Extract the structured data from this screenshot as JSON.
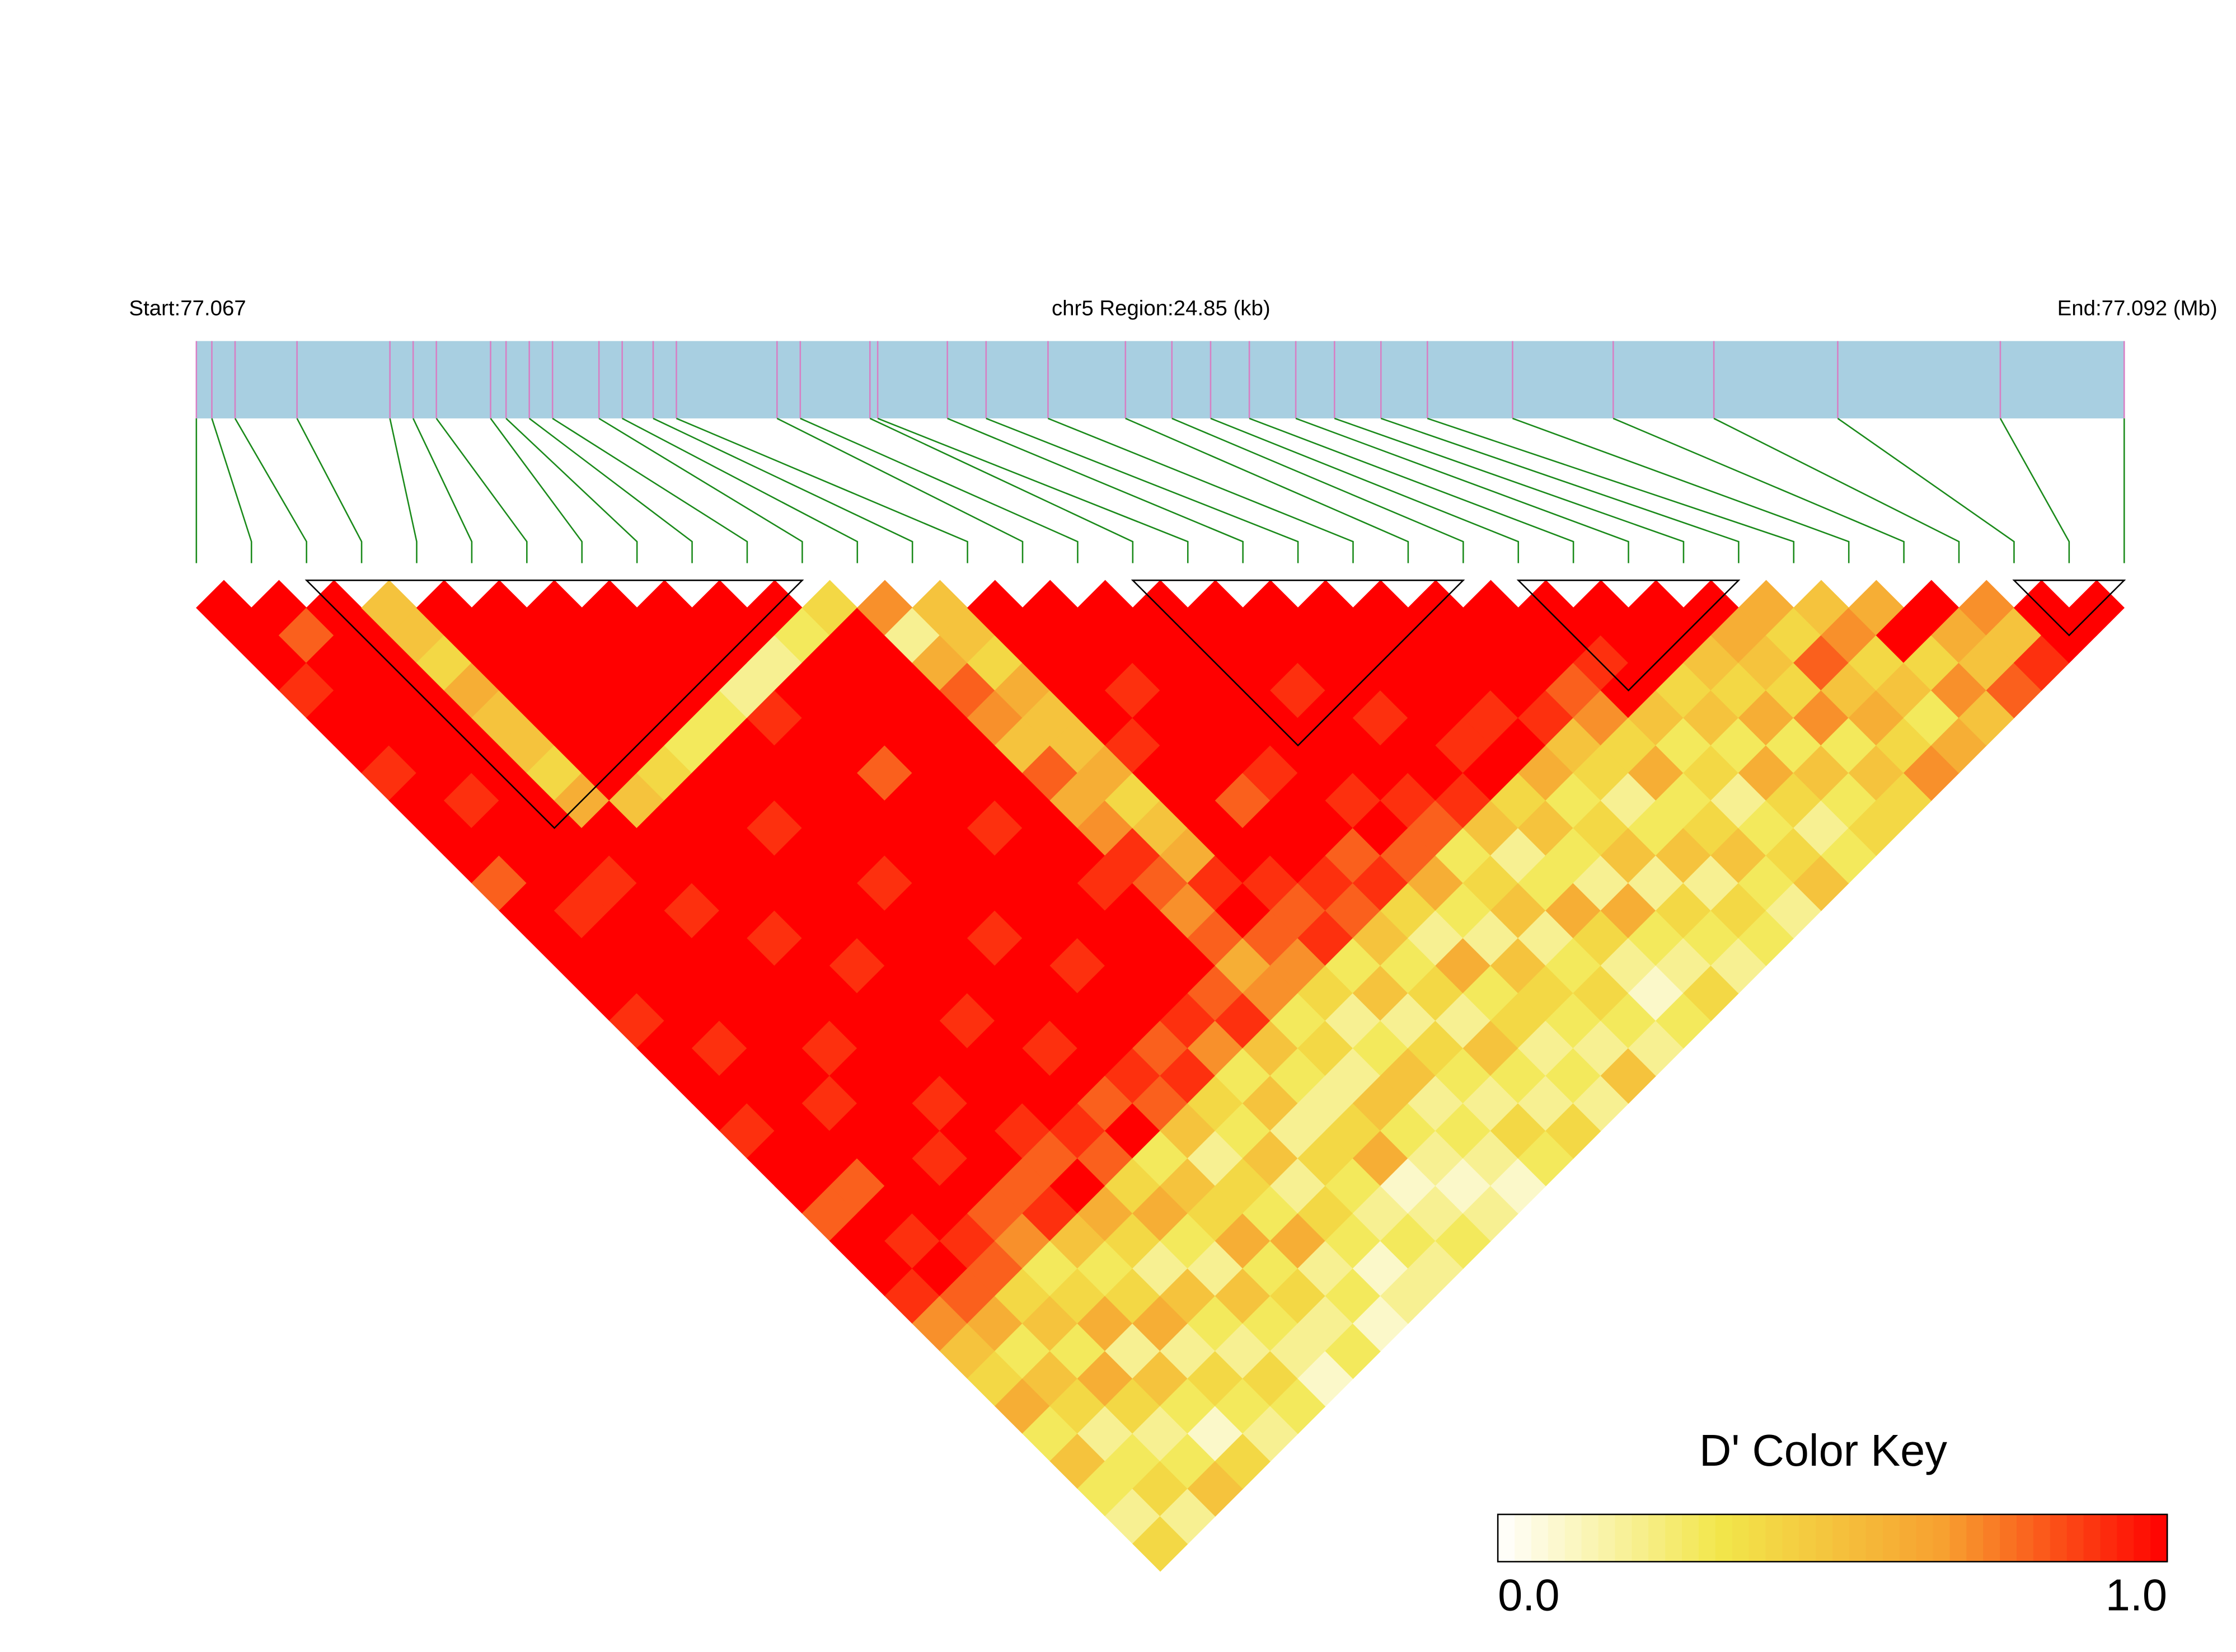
{
  "chart_data": {
    "type": "ld-heatmap",
    "start_label": "Start:77.067",
    "region_label": "chr5 Region:24.85 (kb)",
    "end_label": "End:77.092 (Mb)",
    "colorbar_title": "D' Color Key",
    "colorbar_ticks": [
      {
        "value": 0,
        "label": "0.0"
      },
      {
        "value": 1,
        "label": "1.0"
      }
    ],
    "colormap": [
      "#ffffff",
      "#f2e64a",
      "#f7a030",
      "#ff0000"
    ],
    "bar_color": "#a8cfe1",
    "marker_color": "#d77fc4",
    "connector_color": "#1a8a1a",
    "block_color": "#000000",
    "positions": [
      77.067,
      77.0672,
      77.0675,
      77.0683,
      77.0695,
      77.0698,
      77.0701,
      77.0708,
      77.071,
      77.0713,
      77.0716,
      77.0722,
      77.0725,
      77.0729,
      77.0732,
      77.0745,
      77.0748,
      77.0757,
      77.0758,
      77.0767,
      77.0772,
      77.078,
      77.079,
      77.0796,
      77.0801,
      77.0806,
      77.0812,
      77.0817,
      77.0823,
      77.0829,
      77.084,
      77.0853,
      77.0866,
      77.0882,
      77.0903,
      77.0919
    ],
    "blocks": [
      [
        2,
        11
      ],
      [
        17,
        23
      ],
      [
        24,
        28
      ],
      [
        33,
        35
      ]
    ],
    "dprime": [
      [
        1,
        1,
        1,
        0.9,
        1,
        1,
        0.9,
        1,
        1,
        1,
        0.8,
        1,
        1,
        1,
        1,
        0.9,
        1,
        1,
        1,
        0.9,
        1,
        1,
        0.8,
        1,
        1,
        0.9,
        0.7,
        0.5,
        0.4,
        0.6,
        0.3,
        0.5,
        0.3,
        0.2,
        0.4
      ],
      [
        1,
        0.8,
        1,
        1,
        1,
        1,
        1,
        0.9,
        1,
        1,
        1,
        0.9,
        1,
        1,
        1,
        1,
        0.9,
        1,
        1,
        1,
        1,
        0.8,
        1,
        0.9,
        1,
        0.8,
        0.6,
        0.3,
        0.5,
        0.4,
        0.2,
        0.3,
        0.4,
        0.2
      ],
      [
        1,
        1,
        1,
        1,
        1,
        1,
        1,
        1,
        1,
        1,
        0.9,
        1,
        1,
        1,
        1,
        1,
        1,
        1,
        0.9,
        1,
        1,
        1,
        1,
        0.9,
        0.8,
        0.4,
        0.5,
        0.3,
        0.6,
        0.4,
        0.2,
        0.3,
        0.5
      ],
      [
        0.5,
        0.5,
        0.4,
        0.6,
        0.5,
        0.5,
        0.4,
        0.6,
        1,
        1,
        1,
        0.9,
        1,
        1,
        1,
        1,
        0.9,
        1,
        1,
        1,
        0.9,
        1,
        0.8,
        0.7,
        0.3,
        0.4,
        0.6,
        0.2,
        0.5,
        0.3,
        0.1,
        0.4
      ],
      [
        1,
        1,
        1,
        1,
        1,
        1,
        1,
        0.5,
        1,
        1,
        1,
        1,
        0.9,
        1,
        1,
        1,
        1,
        1,
        0.9,
        1,
        1,
        0.8,
        0.9,
        0.5,
        0.3,
        0.4,
        0.6,
        0.2,
        0.4,
        0.3,
        0.2
      ],
      [
        1,
        1,
        1,
        1,
        1,
        1,
        0.4,
        1,
        1,
        1,
        1,
        1,
        1,
        0.9,
        1,
        1,
        1,
        1,
        1,
        0.9,
        0.8,
        1,
        0.6,
        0.4,
        0.2,
        0.5,
        0.3,
        0.2,
        0.4,
        0.3
      ],
      [
        1,
        1,
        1,
        1,
        1,
        0.3,
        1,
        1,
        0.9,
        1,
        1,
        1,
        1,
        1,
        1,
        0.9,
        1,
        1,
        1,
        0.9,
        0.8,
        0.4,
        0.6,
        0.3,
        0.2,
        0.5,
        0.3,
        0.2,
        0.1
      ],
      [
        1,
        1,
        1,
        1,
        0.3,
        1,
        1,
        1,
        1,
        1,
        0.9,
        1,
        1,
        1,
        1,
        1,
        0.9,
        1,
        0.8,
        1,
        0.3,
        0.5,
        0.4,
        0.6,
        0.3,
        0.4,
        0.2,
        0.3
      ],
      [
        1,
        1,
        1,
        0.2,
        0.9,
        1,
        1,
        1,
        1,
        1,
        1,
        1,
        0.9,
        1,
        1,
        1,
        1,
        0.9,
        0.8,
        0.5,
        0.2,
        0.4,
        0.3,
        0.6,
        0.2,
        0.3,
        0.1
      ],
      [
        1,
        1,
        0.2,
        1,
        1,
        1,
        0.8,
        1,
        1,
        1,
        1,
        1,
        1,
        0.9,
        1,
        1,
        0.8,
        0.9,
        0.4,
        0.3,
        0.5,
        0.2,
        0.4,
        0.3,
        0.1,
        0.2
      ],
      [
        1,
        0.3,
        1,
        1,
        1,
        1,
        1,
        1,
        0.9,
        1,
        1,
        1,
        1,
        1,
        1,
        0.9,
        0.7,
        0.3,
        0.5,
        0.2,
        0.4,
        0.3,
        0.2,
        0.3,
        0.2
      ],
      [
        0.4,
        1,
        1,
        1,
        1,
        1,
        1,
        1,
        1,
        1,
        0.9,
        1,
        1,
        1,
        0.8,
        0.9,
        0.5,
        0.3,
        0.2,
        0.4,
        0.6,
        0.1,
        0.2,
        0.3
      ],
      [
        0.7,
        0.2,
        0.6,
        0.8,
        0.7,
        0.5,
        0.8,
        0.6,
        0.7,
        0.9,
        0.8,
        0.7,
        0.8,
        0.6,
        0.7,
        0.3,
        0.4,
        0.2,
        0.5,
        0.3,
        0.2,
        0.1,
        0.2
      ],
      [
        0.5,
        0.5,
        0.4,
        0.6,
        0.5,
        0.5,
        0.6,
        0.4,
        0.5,
        0.6,
        0.9,
        1,
        0.8,
        0.7,
        0.4,
        0.2,
        0.3,
        0.5,
        0.2,
        0.3,
        0.2,
        0.1
      ],
      [
        1,
        1,
        1,
        1,
        1,
        0.9,
        1,
        1,
        1,
        1,
        0.9,
        0.8,
        0.9,
        0.3,
        0.5,
        0.2,
        0.4,
        0.3,
        0.2,
        0.4,
        0.3
      ],
      [
        1,
        1,
        1,
        0.9,
        1,
        1,
        1,
        0.8,
        1,
        1,
        0.9,
        0.8,
        0.5,
        0.3,
        0.4,
        0.2,
        0.5,
        0.3,
        0.2,
        0.4
      ],
      [
        1,
        1,
        1,
        1,
        1,
        1,
        0.9,
        1,
        1,
        0.8,
        0.9,
        0.4,
        0.2,
        0.6,
        0.3,
        0.4,
        0.2,
        0.3,
        0.2
      ],
      [
        1,
        1,
        1,
        1,
        1,
        1,
        1,
        0.9,
        1,
        0.8,
        0.6,
        0.3,
        0.2,
        0.5,
        0.4,
        0.3,
        0.2,
        0.5
      ],
      [
        1,
        1,
        1,
        0.9,
        1,
        1,
        1,
        0.9,
        0.8,
        0.3,
        0.4,
        0.5,
        0.2,
        0.3,
        0.4,
        0.3,
        0.2
      ],
      [
        1,
        1,
        1,
        1,
        0.9,
        1,
        1,
        0.9,
        0.5,
        0.2,
        0.3,
        0.6,
        0.4,
        0.2,
        0.1,
        0.3
      ],
      [
        1,
        1,
        1,
        1,
        1,
        0.9,
        1,
        0.4,
        0.5,
        0.3,
        0.2,
        0.6,
        0.3,
        0.2,
        0.4
      ],
      [
        1,
        1,
        1,
        1,
        0.9,
        1,
        0.6,
        0.3,
        0.4,
        0.5,
        0.2,
        0.4,
        0.3,
        0.2
      ],
      [
        1,
        1,
        1,
        1,
        0.9,
        0.5,
        0.4,
        0.2,
        0.3,
        0.5,
        0.2,
        0.4,
        0.3
      ],
      [
        1,
        1,
        1,
        0.8,
        0.7,
        0.4,
        0.6,
        0.3,
        0.4,
        0.5,
        0.3,
        0.2
      ],
      [
        1,
        1,
        0.9,
        1,
        0.5,
        0.3,
        0.4,
        0.2,
        0.3,
        0.4,
        0.5
      ],
      [
        1,
        1,
        1,
        0.4,
        0.5,
        0.3,
        0.6,
        0.4,
        0.2,
        0.3
      ],
      [
        1,
        1,
        0.5,
        0.4,
        0.6,
        0.3,
        0.5,
        0.3,
        0.4
      ],
      [
        1,
        0.6,
        0.5,
        0.4,
        0.7,
        0.3,
        0.5,
        0.4
      ],
      [
        0.6,
        0.4,
        0.8,
        0.5,
        0.6,
        0.4,
        0.7
      ],
      [
        0.5,
        0.7,
        0.4,
        0.5,
        0.3,
        0.6
      ],
      [
        0.6,
        1,
        0.4,
        0.7,
        0.5
      ],
      [
        1,
        0.6,
        0.5,
        0.8
      ],
      [
        0.7,
        0.5,
        0.9
      ],
      [
        1,
        1
      ],
      [
        1
      ]
    ]
  }
}
